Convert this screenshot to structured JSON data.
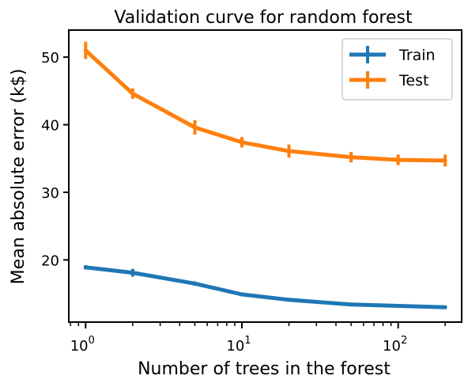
{
  "chart_data": {
    "type": "line",
    "title": "Validation curve for random forest",
    "xlabel": "Number of trees in the forest",
    "ylabel": "Mean absolute error (k$)",
    "x_scale": "log",
    "xlim": [
      0.78,
      255
    ],
    "ylim": [
      10.8,
      54
    ],
    "x": [
      1,
      2,
      5,
      10,
      20,
      50,
      100,
      200
    ],
    "x_ticks": [
      {
        "base": "10",
        "exp": "0",
        "value": 1
      },
      {
        "base": "10",
        "exp": "1",
        "value": 10
      },
      {
        "base": "10",
        "exp": "2",
        "value": 100
      }
    ],
    "y_ticks": [
      {
        "label": "20",
        "value": 20
      },
      {
        "label": "30",
        "value": 30
      },
      {
        "label": "40",
        "value": 40
      },
      {
        "label": "50",
        "value": 50
      }
    ],
    "grid": false,
    "legend": "top-right",
    "series": [
      {
        "name": "Train",
        "color": "#1f77b4",
        "values": [
          18.9,
          18.1,
          16.5,
          14.9,
          14.1,
          13.4,
          13.2,
          13.0
        ],
        "errors": [
          0.15,
          0.4,
          0.15,
          0.1,
          0.1,
          0.1,
          0.1,
          0.1
        ]
      },
      {
        "name": "Test",
        "color": "#ff7f0e",
        "values": [
          51.0,
          44.6,
          39.6,
          37.4,
          36.1,
          35.2,
          34.8,
          34.7
        ],
        "errors": [
          1.1,
          0.6,
          0.9,
          0.6,
          0.8,
          0.6,
          0.6,
          0.7
        ]
      }
    ]
  }
}
